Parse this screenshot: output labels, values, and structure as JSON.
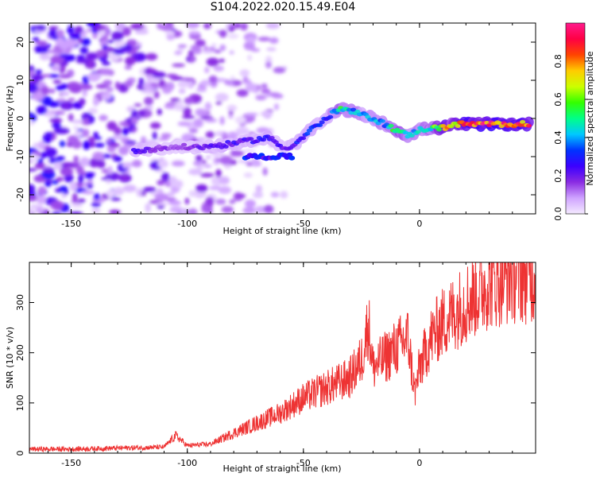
{
  "title": "S104.2022.020.15.49.E04",
  "colors": {
    "snr_line": "#ee3333",
    "axis": "#000000",
    "background": "#ffffff"
  },
  "chart_data": [
    {
      "type": "heatmap",
      "title": "S104.2022.020.15.49.E04",
      "xlabel": "Height of straight line (km)",
      "ylabel": "Frequency (Hz)",
      "xlim": [
        -168,
        50
      ],
      "ylim": [
        -25,
        25
      ],
      "x_ticks": [
        -150,
        -100,
        -50,
        0
      ],
      "y_ticks": [
        -20,
        -10,
        0,
        10,
        20
      ],
      "colorbar": {
        "label": "Normalized spectral amplitude",
        "range": [
          0,
          1
        ],
        "ticks": [
          "0.0",
          "0.2",
          "0.4",
          "0.6",
          "0.8"
        ],
        "colors": [
          "#f4eaff",
          "#cfa3ff",
          "#8a2be2",
          "#3b00ff",
          "#0033ff",
          "#00c8ff",
          "#00ff88",
          "#33ff00",
          "#ccff00",
          "#ffcc00",
          "#ff4400",
          "#ff0044",
          "#ff1a8c"
        ]
      },
      "ridge": {
        "x": [
          -123,
          -115,
          -105,
          -95,
          -85,
          -75,
          -65,
          -58,
          -52,
          -47,
          -42,
          -38,
          -34,
          -30,
          -25,
          -20,
          -15,
          -10,
          -5,
          0,
          5,
          10,
          15,
          20,
          30,
          40,
          48
        ],
        "freq": [
          -8.5,
          -8,
          -7.5,
          -7.5,
          -7,
          -6,
          -5,
          -8,
          -6,
          -3,
          -1,
          1,
          2.5,
          2,
          1,
          0,
          -1.5,
          -3,
          -4.5,
          -3,
          -2.5,
          -2.5,
          -1.5,
          -1.5,
          -1.5,
          -1.5,
          -1.5
        ],
        "amplitude": [
          0.25,
          0.2,
          0.15,
          0.2,
          0.25,
          0.25,
          0.3,
          0.2,
          0.3,
          0.35,
          0.3,
          0.4,
          0.55,
          0.45,
          0.4,
          0.45,
          0.4,
          0.6,
          0.45,
          0.45,
          0.5,
          0.8,
          0.7,
          0.9,
          0.95,
          0.95,
          0.85
        ]
      }
    },
    {
      "type": "line",
      "xlabel": "Height of straight line (km)",
      "ylabel": "SNR (10 * v/v)",
      "xlim": [
        -168,
        50
      ],
      "ylim": [
        0,
        380
      ],
      "x_ticks": [
        -150,
        -100,
        -50,
        0
      ],
      "y_ticks": [
        0,
        100,
        200,
        300
      ],
      "series": [
        {
          "x": [
            -168,
            -150,
            -130,
            -110,
            -105,
            -100,
            -90,
            -80,
            -70,
            -60,
            -50,
            -40,
            -30,
            -25,
            -22,
            -20,
            -15,
            -10,
            -5,
            -2,
            0,
            5,
            10,
            20,
            30,
            40,
            50
          ],
          "y": [
            8,
            8,
            10,
            12,
            35,
            15,
            18,
            40,
            60,
            80,
            110,
            130,
            150,
            185,
            260,
            170,
            190,
            210,
            230,
            120,
            170,
            230,
            260,
            300,
            340,
            355,
            355
          ]
        }
      ]
    }
  ]
}
